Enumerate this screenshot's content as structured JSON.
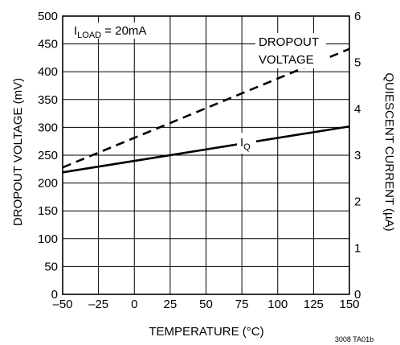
{
  "chart_data": {
    "type": "line",
    "xlabel": "TEMPERATURE (°C)",
    "ylabel": "DROPOUT VOLTAGE (mV)",
    "y2label": "QUIESCENT CURRENT (µA)",
    "xlim": [
      -50,
      150
    ],
    "ylim": [
      0,
      500
    ],
    "y2lim": [
      0,
      6
    ],
    "x_ticks": [
      -50,
      -25,
      0,
      25,
      50,
      75,
      100,
      125,
      150
    ],
    "x_tick_labels": [
      "–50",
      "–25",
      "0",
      "25",
      "50",
      "75",
      "100",
      "125",
      "150"
    ],
    "y_ticks": [
      0,
      50,
      100,
      150,
      200,
      250,
      300,
      350,
      400,
      450,
      500
    ],
    "y2_ticks": [
      0,
      1,
      2,
      3,
      4,
      5,
      6
    ],
    "grid": true,
    "series": [
      {
        "name": "DROPOUT VOLTAGE",
        "axis": "left",
        "style": "dashed",
        "x": [
          -50,
          150
        ],
        "y": [
          228,
          441
        ]
      },
      {
        "name": "IQ",
        "axis": "right",
        "style": "solid",
        "x": [
          -50,
          150
        ],
        "y": [
          2.63,
          3.62
        ]
      }
    ],
    "annotations": {
      "load_prefix": "I",
      "load_sub": "LOAD",
      "load_suffix": " = 20mA",
      "dropout_line1": "DROPOUT",
      "dropout_line2": "VOLTAGE",
      "iq_main": "I",
      "iq_sub": "Q"
    },
    "code": "3008 TA01b"
  }
}
